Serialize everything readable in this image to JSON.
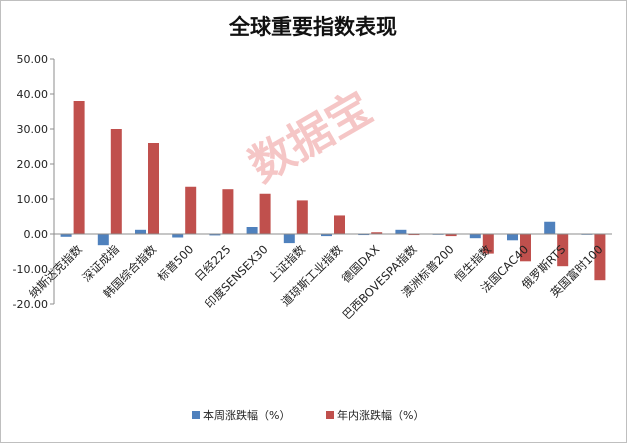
{
  "watermark": "数据宝",
  "chart_data": {
    "type": "bar",
    "title": "全球重要指数表现",
    "xlabel": "",
    "ylabel": "",
    "ylim": [
      -20,
      50
    ],
    "yticks": [
      "50.00",
      "40.00",
      "30.00",
      "20.00",
      "10.00",
      "0.00",
      "-10.00",
      "-20.00"
    ],
    "ytick_values": [
      50,
      40,
      30,
      20,
      10,
      0,
      -10,
      -20
    ],
    "grid": false,
    "legend_position": "bottom",
    "categories": [
      "纳斯达克指数",
      "深证成指",
      "韩国综合指数",
      "标普500",
      "日经225",
      "印度SENSEX30",
      "上证指数",
      "道琼斯工业指数",
      "德国DAX",
      "巴西BOVESPA指数",
      "澳洲标普200",
      "恒生指数",
      "法国CAC40",
      "俄罗斯RTS",
      "英国富时100"
    ],
    "series": [
      {
        "name": "本周涨跌幅（%）",
        "color": "#4F81BD",
        "values": [
          -0.8,
          -3.2,
          1.2,
          -1.0,
          -0.4,
          2.0,
          -2.6,
          -0.6,
          -0.3,
          1.2,
          -0.2,
          -1.2,
          -1.8,
          3.5,
          -0.2
        ]
      },
      {
        "name": "年内涨跌幅（%）",
        "color": "#C0504D",
        "values": [
          38.0,
          30.0,
          26.0,
          13.5,
          12.8,
          11.5,
          9.6,
          5.3,
          0.5,
          -0.3,
          -0.6,
          -5.6,
          -7.8,
          -9.2,
          -13.2
        ]
      }
    ]
  }
}
